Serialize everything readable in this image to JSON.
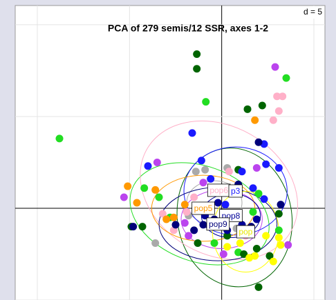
{
  "chart_data": {
    "type": "scatter",
    "title": "PCA of 279 semis/12 SSR, axes 1-2",
    "grid_label": "d = 5",
    "xlim": [
      -11.2,
      5.6
    ],
    "ylim": [
      -5,
      11.05
    ],
    "xticks": [
      -10,
      -5,
      0,
      5
    ],
    "yticks": [
      -5,
      0,
      5,
      10
    ],
    "grid": true,
    "series": [
      {
        "color": "#22dd22",
        "ellipse": [
          -1.2,
          -0.3,
          3.9,
          2.6,
          -20
        ],
        "values": [
          [
            -8.8,
            3.8
          ],
          [
            -0.86,
            5.8
          ],
          [
            3.5,
            7.1
          ],
          [
            -4.2,
            1.1
          ],
          [
            -3.4,
            0.6
          ],
          [
            0.6,
            0.9
          ],
          [
            2.0,
            0.8
          ],
          [
            1.7,
            -0.2
          ],
          [
            -0.4,
            -1.9
          ],
          [
            0.9,
            -2.4
          ],
          [
            -2.8,
            -0.5
          ],
          [
            3.1,
            -1.2
          ]
        ]
      },
      {
        "color": "#006400",
        "ellipse": [
          0.7,
          -0.5,
          3.1,
          3.8,
          10
        ],
        "values": [
          [
            -1.35,
            8.4
          ],
          [
            -1.35,
            7.6
          ],
          [
            2.2,
            5.6
          ],
          [
            1.4,
            5.4
          ],
          [
            0.9,
            2.1
          ],
          [
            3.1,
            -0.3
          ],
          [
            -4.9,
            -1.0
          ],
          [
            -4.3,
            -1.0
          ],
          [
            1.9,
            -2.2
          ],
          [
            2.0,
            -4.3
          ],
          [
            -1.3,
            -1.9
          ],
          [
            1.2,
            -2.5
          ],
          [
            0.3,
            -1.5
          ],
          [
            2.6,
            -2.6
          ]
        ]
      },
      {
        "color": "#bb44ee",
        "ellipse": [
          0,
          -0.6,
          2.2,
          1.6,
          0
        ],
        "values": [
          [
            2.9,
            7.7
          ],
          [
            -3.5,
            2.5
          ],
          [
            -1.0,
            1.4
          ],
          [
            -5.3,
            0.6
          ],
          [
            1.9,
            2.2
          ],
          [
            -1.8,
            -1.5
          ],
          [
            0.1,
            -2.5
          ],
          [
            3.6,
            -2.0
          ],
          [
            -2.0,
            -0.8
          ]
        ]
      },
      {
        "color": "#aaaaaa",
        "ellipse": [
          -0.4,
          0.3,
          1.5,
          1.2,
          0
        ],
        "values": [
          [
            0.3,
            2.2
          ],
          [
            -1.4,
            2.0
          ],
          [
            -3.6,
            -1.9
          ],
          [
            -1.8,
            -0.4
          ],
          [
            -0.9,
            2.1
          ],
          [
            0.8,
            -1.1
          ]
        ]
      },
      {
        "name": "pop6",
        "color": "#ffb0c8",
        "ellipse": [
          -0.15,
          0.98,
          4.5,
          3.5,
          -30
        ],
        "values": [
          [
            3.0,
            6.1
          ],
          [
            3.1,
            5.3
          ],
          [
            3.3,
            6.1
          ],
          [
            2.8,
            4.8
          ],
          [
            -1.5,
            0.6
          ],
          [
            -3.2,
            -0.3
          ],
          [
            -2.6,
            -1.2
          ],
          [
            1.3,
            -1.5
          ],
          [
            -1.9,
            -0.2
          ],
          [
            0.4,
            2.0
          ]
        ]
      },
      {
        "name": "p3",
        "color": "#1a1aff",
        "ellipse": [
          0.75,
          0.94,
          2.8,
          2.4,
          0
        ],
        "values": [
          [
            -1.6,
            4.1
          ],
          [
            2.3,
            3.5
          ],
          [
            -1.1,
            2.6
          ],
          [
            -4.0,
            2.3
          ],
          [
            1.1,
            2.0
          ],
          [
            2.4,
            2.4
          ],
          [
            -0.6,
            1.6
          ],
          [
            1.7,
            1.1
          ],
          [
            3.1,
            2.2
          ],
          [
            2.3,
            0.5
          ],
          [
            0.2,
            0.2
          ]
        ]
      },
      {
        "name": "pop5",
        "color": "#ff9900",
        "ellipse": [
          -1.0,
          0,
          2.8,
          1.8,
          0
        ],
        "values": [
          [
            1.8,
            4.8
          ],
          [
            -5.1,
            1.2
          ],
          [
            -3.6,
            1.0
          ],
          [
            -2.0,
            0.2
          ],
          [
            -2.6,
            -0.5
          ],
          [
            -0.3,
            1.1
          ],
          [
            -3.0,
            -0.6
          ],
          [
            1.2,
            -1.4
          ],
          [
            -4.6,
            0.3
          ]
        ]
      },
      {
        "name": "pop8",
        "color": "#000099",
        "ellipse": [
          0.5,
          -0.4,
          1.6,
          1.2,
          0
        ],
        "values": [
          [
            0.6,
            -0.3
          ],
          [
            1.1,
            -0.9
          ],
          [
            -0.9,
            -0.4
          ],
          [
            1.9,
            -0.6
          ],
          [
            0.3,
            -1.2
          ],
          [
            -0.2,
            0.3
          ]
        ]
      },
      {
        "name": "pop9",
        "color": "#00007a",
        "ellipse": [
          -0.2,
          -0.86,
          3.2,
          2.0,
          0
        ],
        "values": [
          [
            2.0,
            3.6
          ],
          [
            -4.8,
            -1.0
          ],
          [
            -2.5,
            -0.9
          ],
          [
            -1.0,
            -0.9
          ],
          [
            0.8,
            -0.5
          ],
          [
            3.2,
            0.2
          ],
          [
            -1.5,
            -1.2
          ],
          [
            0.9,
            1.3
          ],
          [
            -0.4,
            -0.6
          ],
          [
            1.6,
            -1.0
          ]
        ]
      },
      {
        "name": "pop",
        "color": "#ffff00",
        "ellipse": [
          1.3,
          -1.28,
          1.8,
          2.2,
          0
        ],
        "values": [
          [
            3.1,
            -1.6
          ],
          [
            3.2,
            -2.0
          ],
          [
            1.8,
            -2.6
          ],
          [
            1.5,
            -2.7
          ],
          [
            2.4,
            -1.5
          ],
          [
            1.0,
            -1.9
          ],
          [
            0.3,
            -2.1
          ],
          [
            2.8,
            -2.9
          ]
        ]
      }
    ]
  }
}
